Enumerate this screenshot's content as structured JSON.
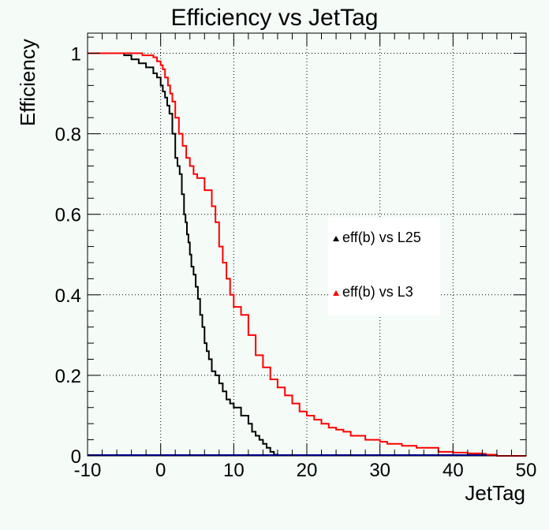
{
  "chart_data": {
    "type": "line",
    "title": "Efficiency vs JetTag",
    "xlabel": "JetTag",
    "ylabel": "Efficiency",
    "xlim": [
      -10,
      50
    ],
    "ylim": [
      0,
      1.05
    ],
    "grid": true,
    "x_ticks": [
      "-10",
      "0",
      "10",
      "20",
      "30",
      "40",
      "50"
    ],
    "y_ticks": [
      "0",
      "0.2",
      "0.4",
      "0.6",
      "0.8",
      "1"
    ],
    "legend_placement": "center-right",
    "legend": [
      {
        "label": "eff(b) vs L25",
        "color": "#000000"
      },
      {
        "label": "eff(b) vs L3",
        "color": "#ff0000"
      }
    ],
    "series": [
      {
        "color": "#000000",
        "x": [
          -10,
          -5,
          -4,
          -3,
          -2,
          -1,
          -0.5,
          0,
          0.3,
          0.6,
          0.9,
          1.2,
          1.6,
          2.0,
          2.3,
          2.6,
          2.9,
          3.2,
          3.4,
          3.6,
          3.8,
          4.0,
          4.2,
          4.5,
          4.8,
          5.1,
          5.4,
          5.7,
          6.0,
          6.3,
          6.6,
          7.0,
          7.5,
          8.0,
          8.5,
          9.0,
          9.5,
          10.0,
          11.0,
          12.0,
          12.5,
          13.0,
          13.5,
          14.0,
          14.5,
          15.0,
          15.5,
          16.0
        ],
        "y": [
          1.0,
          0.995,
          0.985,
          0.975,
          0.965,
          0.95,
          0.94,
          0.92,
          0.905,
          0.89,
          0.87,
          0.85,
          0.8,
          0.74,
          0.72,
          0.7,
          0.65,
          0.6,
          0.58,
          0.55,
          0.53,
          0.5,
          0.47,
          0.45,
          0.42,
          0.39,
          0.35,
          0.32,
          0.28,
          0.26,
          0.24,
          0.21,
          0.2,
          0.18,
          0.16,
          0.14,
          0.13,
          0.12,
          0.1,
          0.08,
          0.06,
          0.05,
          0.04,
          0.03,
          0.02,
          0.01,
          0.003,
          0.0
        ]
      },
      {
        "color": "#ff0000",
        "x": [
          -10,
          -2.5,
          -1,
          -0.5,
          0,
          0.3,
          0.6,
          1.0,
          1.3,
          1.6,
          2.0,
          2.5,
          3.0,
          3.5,
          4.0,
          4.5,
          5.0,
          6.0,
          7.0,
          7.5,
          8.0,
          8.5,
          9.0,
          9.5,
          10.0,
          11.0,
          12.0,
          13.0,
          14.0,
          15.0,
          16.0,
          17.0,
          18.0,
          19.0,
          20.0,
          21.0,
          22.0,
          23.0,
          24.0,
          25.0,
          26.0,
          28.0,
          30.0,
          31.0,
          33.0,
          35.0,
          38.0,
          40.0,
          42.0,
          44.0,
          44.5,
          46.0,
          50.0
        ],
        "y": [
          1.0,
          0.995,
          0.99,
          0.98,
          0.97,
          0.96,
          0.94,
          0.92,
          0.9,
          0.88,
          0.84,
          0.8,
          0.77,
          0.74,
          0.72,
          0.7,
          0.69,
          0.66,
          0.62,
          0.58,
          0.52,
          0.48,
          0.44,
          0.4,
          0.37,
          0.35,
          0.3,
          0.25,
          0.22,
          0.19,
          0.17,
          0.15,
          0.13,
          0.11,
          0.1,
          0.09,
          0.08,
          0.07,
          0.065,
          0.06,
          0.05,
          0.04,
          0.035,
          0.03,
          0.025,
          0.02,
          0.01,
          0.008,
          0.006,
          0.005,
          0.003,
          0.0,
          0.0
        ]
      }
    ]
  }
}
